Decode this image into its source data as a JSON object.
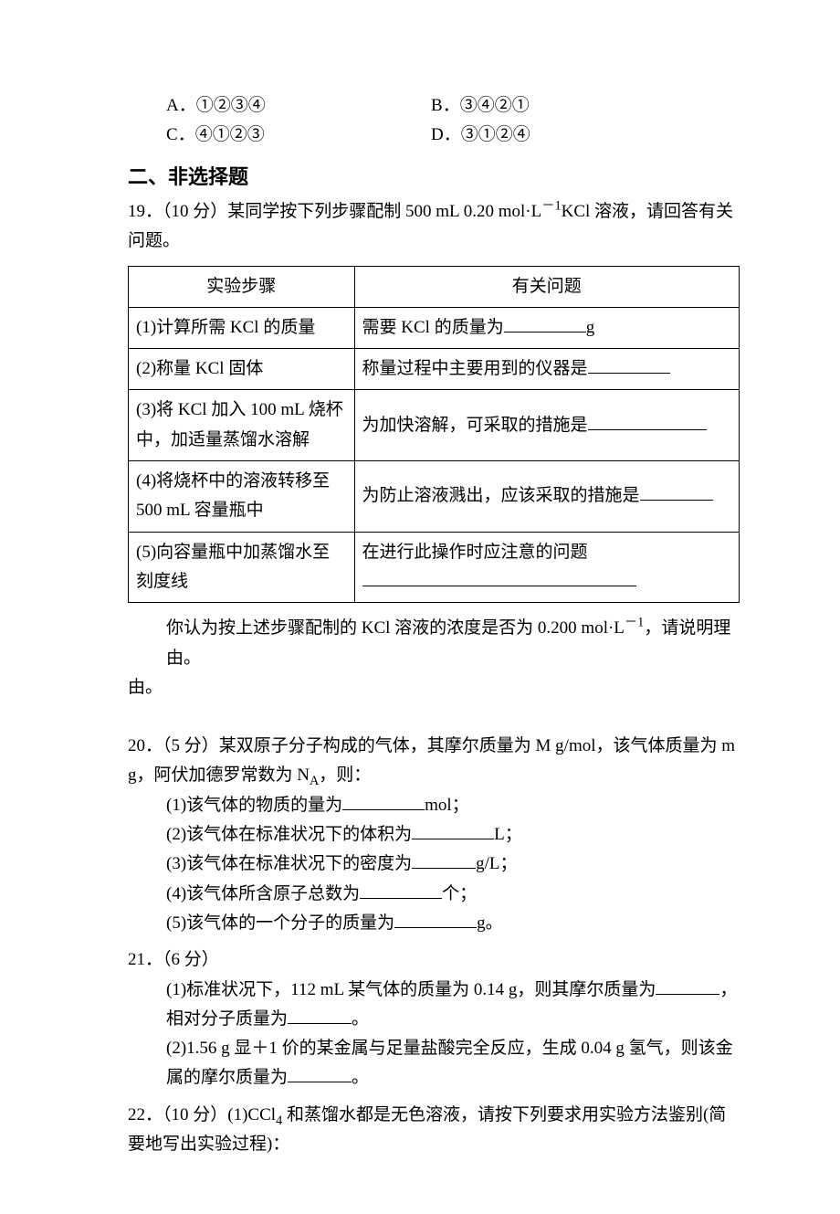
{
  "options18": {
    "a": {
      "label": "A",
      "text": "①②③④"
    },
    "b": {
      "label": "B",
      "text": "③④②①"
    },
    "c": {
      "label": "C",
      "text": "④①②③"
    },
    "d": {
      "label": "D",
      "text": "③①②④"
    }
  },
  "sectionHeading": "二、非选择题",
  "q19": {
    "number": "19",
    "points": "（10 分）",
    "intro1": "某同学按下列步骤配制 500 mL 0.20 mol·L",
    "sup1": "－1",
    "intro2": "KCl 溶液，请回答有关问题。",
    "table": {
      "header": {
        "step": "实验步骤",
        "question": "有关问题"
      },
      "rows": [
        {
          "step": "(1)计算所需 KCl 的质量",
          "q_pre": "需要 KCl 的质量为",
          "q_post": "g"
        },
        {
          "step": "(2)称量 KCl 固体",
          "q_pre": "称量过程中主要用到的仪器是",
          "q_post": ""
        },
        {
          "step": "(3)将 KCl 加入 100 mL 烧杯中，加适量蒸馏水溶解",
          "q_pre": "为加快溶解，可采取的措施是",
          "q_post": ""
        },
        {
          "step": "(4)将烧杯中的溶液转移至 500 mL 容量瓶中",
          "q_pre": "为防止溶液溅出，应该采取的措施是",
          "q_post": ""
        },
        {
          "step": "(5)向容量瓶中加蒸馏水至刻度线",
          "q_pre": "在进行此操作时应注意的问题",
          "q_post": ""
        }
      ]
    },
    "followup1": "你认为按上述步骤配制的 KCl 溶液的浓度是否为 0.200 mol·L",
    "followup_sup": "－1",
    "followup2": "，请说明理由。"
  },
  "q20": {
    "number": "20",
    "points": "（5 分）",
    "intro1": "某双原子分子构成的气体，其摩尔质量为 M g/mol，该气体质量为 m g，阿伏加德罗常数为 N",
    "sub": "A",
    "intro2": "，则：",
    "items": [
      {
        "pre": "(1)该气体的物质的量为",
        "post": "mol；"
      },
      {
        "pre": "(2)该气体在标准状况下的体积为",
        "post": "L；"
      },
      {
        "pre": "(3)该气体在标准状况下的密度为",
        "post": "g/L；"
      },
      {
        "pre": "(4)该气体所含原子总数为",
        "post": "个；"
      },
      {
        "pre": "(5)该气体的一个分子的质量为",
        "post": "g。"
      }
    ]
  },
  "q21": {
    "number": "21",
    "points": "（6 分）",
    "p1_pre": "(1)标准状况下，112 mL 某气体的质量为 0.14 g，则其摩尔质量为",
    "p1_mid": "，相对分子质量为",
    "p1_post": "。",
    "p2_pre": "(2)1.56 g 显＋1 价的某金属与足量盐酸完全反应，生成 0.04 g 氢气，则该金属的摩尔质量为",
    "p2_post": "。"
  },
  "q22": {
    "number": "22",
    "points": "（10 分）",
    "text1": "(1)CCl",
    "sub": "4",
    "text2": " 和蒸馏水都是无色溶液，请按下列要求用实验方法鉴别(简要地写出实验过程)："
  }
}
